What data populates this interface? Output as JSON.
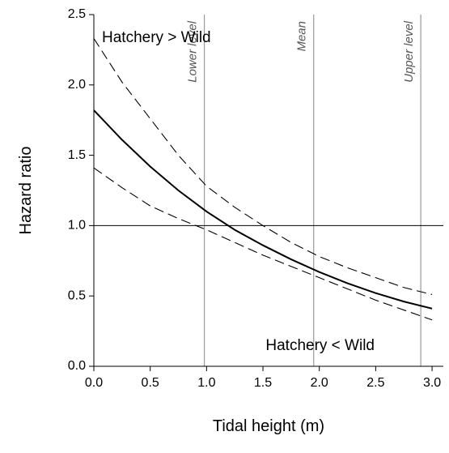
{
  "chart_data": {
    "type": "line",
    "x_label": "Tidal height (m)",
    "y_label": "Hazard ratio",
    "x": [
      0,
      0.25,
      0.5,
      0.75,
      1.0,
      1.25,
      1.5,
      1.75,
      2.0,
      2.25,
      2.5,
      2.75,
      3.0
    ],
    "series": [
      {
        "color": "#000000",
        "style": "solid",
        "values": [
          1.82,
          1.61,
          1.42,
          1.25,
          1.1,
          0.97,
          0.86,
          0.76,
          0.67,
          0.59,
          0.52,
          0.46,
          0.41
        ]
      },
      {
        "color": "#000000",
        "style": "dashed",
        "values": [
          2.33,
          2.02,
          1.76,
          1.5,
          1.28,
          1.13,
          1.0,
          0.88,
          0.78,
          0.7,
          0.63,
          0.56,
          0.51
        ]
      },
      {
        "color": "#000000",
        "style": "dashed",
        "values": [
          1.41,
          1.27,
          1.14,
          1.05,
          0.97,
          0.88,
          0.79,
          0.71,
          0.63,
          0.55,
          0.47,
          0.4,
          0.33
        ]
      }
    ],
    "xlim": [
      0,
      3.1
    ],
    "ylim": [
      0,
      2.5
    ],
    "xticks": [
      {
        "value": 0,
        "label": "0.0"
      },
      {
        "value": 0.5,
        "label": "0.5"
      },
      {
        "value": 1,
        "label": "1.0"
      },
      {
        "value": 1.5,
        "label": "1.5"
      },
      {
        "value": 2,
        "label": "2.0"
      },
      {
        "value": 2.5,
        "label": "2.5"
      },
      {
        "value": 3,
        "label": "3.0"
      }
    ],
    "yticks": [
      {
        "value": 0,
        "label": "0.0"
      },
      {
        "value": 0.5,
        "label": "0.5"
      },
      {
        "value": 1,
        "label": "1.0"
      },
      {
        "value": 1.5,
        "label": "1.5"
      },
      {
        "value": 2,
        "label": "2.0"
      },
      {
        "value": 2.5,
        "label": "2.5"
      }
    ],
    "hline": 1,
    "reference_lines": [
      {
        "x": 0.98,
        "label": "Lower level"
      },
      {
        "x": 1.95,
        "label": "Mean"
      },
      {
        "x": 2.9,
        "label": "Upper level"
      }
    ],
    "annotations": [
      "Hatchery > Wild",
      "Hatchery < Wild"
    ]
  }
}
